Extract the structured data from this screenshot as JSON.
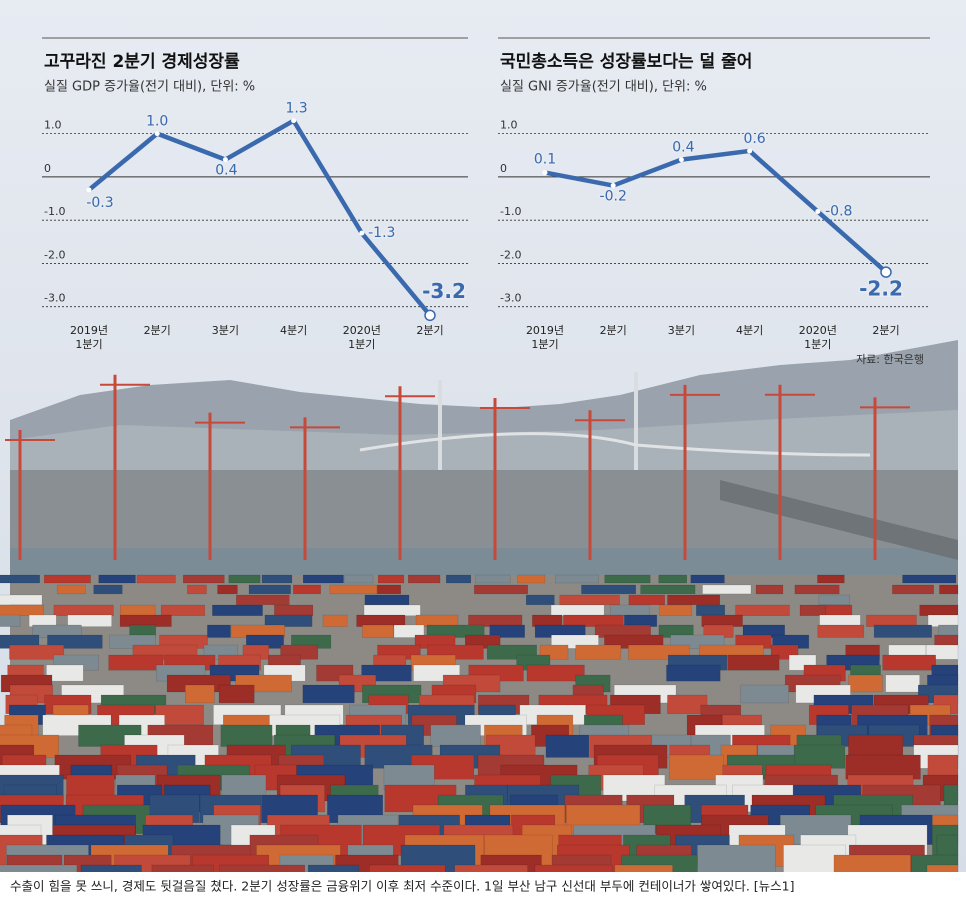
{
  "chart_data": [
    {
      "type": "line",
      "title": "고꾸라진 2분기 경제성장률",
      "subtitle": "실질 GDP 증가율(전기 대비), 단위: %",
      "categories": [
        "2019년\n1분기",
        "2분기",
        "3분기",
        "4분기",
        "2020년\n1분기",
        "2분기"
      ],
      "values": [
        -0.3,
        1.0,
        0.4,
        1.3,
        -1.3,
        -3.2
      ],
      "value_labels": [
        "-0.3",
        "1.0",
        "0.4",
        "1.3",
        "-1.3",
        "-3.2"
      ],
      "color": "#3a69ad",
      "ylim": [
        -3.4,
        1.5
      ],
      "yticks": [
        {
          "value": 1.0,
          "label": "1.0"
        },
        0,
        {
          "value": -1.0,
          "label": "-1.0"
        },
        {
          "value": -2.0,
          "label": "-2.0"
        },
        {
          "value": -3.0,
          "label": "-3.0"
        }
      ],
      "grid": true
    },
    {
      "type": "line",
      "title": "국민총소득은 성장률보다는 덜 줄어",
      "subtitle": "실질 GNI 증가율(전기 대비), 단위: %",
      "categories": [
        "2019년\n1분기",
        "2분기",
        "3분기",
        "4분기",
        "2020년\n1분기",
        "2분기"
      ],
      "values": [
        0.1,
        -0.2,
        0.4,
        0.6,
        -0.8,
        -2.2
      ],
      "value_labels": [
        "0.1",
        "-0.2",
        "0.4",
        "0.6",
        "-0.8",
        "-2.2"
      ],
      "color": "#3a69ad",
      "ylim": [
        -3.4,
        1.5
      ],
      "yticks": [
        {
          "value": 1.0,
          "label": "1.0"
        },
        0,
        {
          "value": -1.0,
          "label": "-1.0"
        },
        {
          "value": -2.0,
          "label": "-2.0"
        },
        {
          "value": -3.0,
          "label": "-3.0"
        }
      ],
      "grid": true
    }
  ],
  "source": "자료: 한국은행",
  "caption": "수출이 힘을 못 쓰니, 경제도 뒷걸음질 쳤다. 2분기 성장률은 금융위기 이후 최저 수준이다. 1일 부산 남구 신선대 부두에 컨테이너가 쌓여있다. [뉴스1]"
}
